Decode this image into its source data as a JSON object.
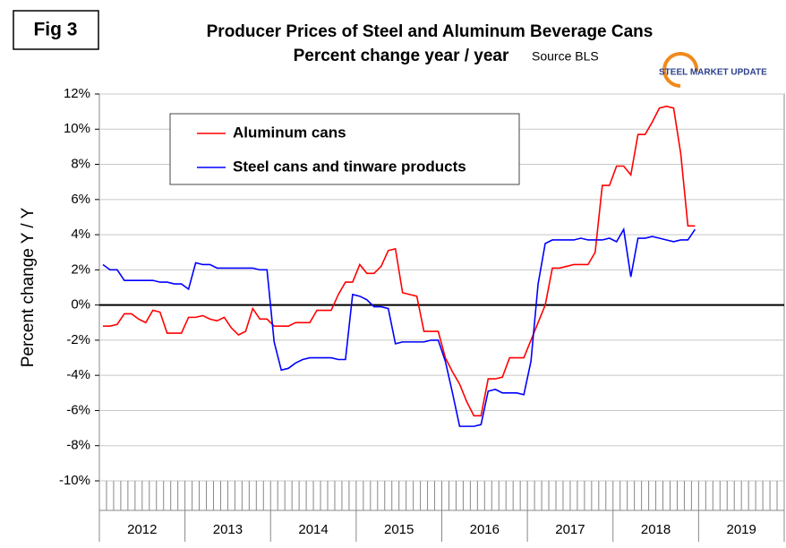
{
  "chart_data": {
    "type": "line",
    "figure_label": "Fig 3",
    "title": "Producer Prices of Steel and Aluminum Beverage Cans",
    "subtitle": "Percent change year / year",
    "source": "Source BLS",
    "logo": "STEEL MARKET UPDATE",
    "y_label": "Percent change Y / Y",
    "categories": [
      null,
      null,
      null,
      null,
      null,
      null,
      null,
      null,
      null,
      null,
      null,
      null,
      null,
      null,
      null,
      null,
      null,
      null,
      null,
      null,
      null,
      null,
      null,
      null,
      null,
      null,
      null,
      null,
      null,
      null,
      null,
      null,
      null,
      null,
      null,
      null,
      null,
      null,
      null,
      null,
      null,
      null,
      null,
      null,
      null,
      null,
      null,
      null,
      null,
      null,
      null,
      null,
      null,
      null,
      null,
      null,
      null,
      null,
      null,
      null,
      null,
      null,
      null,
      null,
      null,
      null,
      null,
      null,
      null,
      null,
      null,
      null,
      null,
      null,
      null,
      null,
      null,
      null,
      null,
      null,
      null,
      null,
      null,
      null,
      null,
      null,
      null,
      null,
      null,
      null,
      null,
      null,
      null,
      null,
      null,
      null
    ],
    "year_labels": [
      "2012",
      "2013",
      "2014",
      "2015",
      "2016",
      "2017",
      "2018",
      "2019"
    ],
    "series": [
      {
        "name": "Aluminum cans",
        "color": "#ff0000",
        "values": [
          -1.2,
          -1.2,
          -1.1,
          -0.5,
          -0.5,
          -0.8,
          -1.0,
          -0.3,
          -0.4,
          -1.6,
          -1.6,
          -1.6,
          -0.7,
          -0.7,
          -0.6,
          -0.8,
          -0.9,
          -0.7,
          -1.3,
          -1.7,
          -1.5,
          -0.2,
          -0.8,
          -0.8,
          -1.2,
          -1.2,
          -1.2,
          -1.0,
          -1.0,
          -1.0,
          -0.3,
          -0.3,
          -0.3,
          0.6,
          1.3,
          1.3,
          2.3,
          1.8,
          1.8,
          2.2,
          3.1,
          3.2,
          0.7,
          0.6,
          0.5,
          -1.5,
          -1.5,
          -1.5,
          -3.0,
          -3.8,
          -4.5,
          -5.5,
          -6.3,
          -6.3,
          -4.2,
          -4.2,
          -4.1,
          -3.0,
          -3.0,
          -3.0,
          -2.0,
          -1.0,
          0.0,
          2.1,
          2.1,
          2.2,
          2.3,
          2.3,
          2.3,
          3.0,
          6.8,
          6.8,
          7.9,
          7.9,
          7.4,
          9.7,
          9.7,
          10.4,
          11.2,
          11.3,
          11.2,
          8.6,
          4.5,
          4.5,
          null,
          null,
          null,
          null,
          null,
          null,
          null,
          null,
          null,
          null,
          null,
          null
        ]
      },
      {
        "name": "Steel cans and tinware products",
        "color": "#0000ff",
        "values": [
          2.3,
          2.0,
          2.0,
          1.4,
          1.4,
          1.4,
          1.4,
          1.4,
          1.3,
          1.3,
          1.2,
          1.2,
          0.9,
          2.4,
          2.3,
          2.3,
          2.1,
          2.1,
          2.1,
          2.1,
          2.1,
          2.1,
          2.0,
          2.0,
          -2.1,
          -3.7,
          -3.6,
          -3.3,
          -3.1,
          -3.0,
          -3.0,
          -3.0,
          -3.0,
          -3.1,
          -3.1,
          0.6,
          0.5,
          0.3,
          -0.1,
          -0.1,
          -0.2,
          -2.2,
          -2.1,
          -2.1,
          -2.1,
          -2.1,
          -2.0,
          -2.0,
          -3.2,
          -5.0,
          -6.9,
          -6.9,
          -6.9,
          -6.8,
          -4.9,
          -4.8,
          -5.0,
          -5.0,
          -5.0,
          -5.1,
          -3.2,
          1.2,
          3.5,
          3.7,
          3.7,
          3.7,
          3.7,
          3.8,
          3.7,
          3.7,
          3.7,
          3.8,
          3.6,
          4.3,
          1.6,
          3.8,
          3.8,
          3.9,
          3.8,
          3.7,
          3.6,
          3.7,
          3.7,
          4.3,
          null,
          null,
          null,
          null,
          null,
          null,
          null,
          null,
          null,
          null,
          null,
          null
        ]
      }
    ],
    "ylim": [
      -10,
      12
    ],
    "yticks": [
      {
        "value": -10,
        "label": "-10%"
      },
      {
        "value": -8,
        "label": "-8%"
      },
      {
        "value": -6,
        "label": "-6%"
      },
      {
        "value": -4,
        "label": "-4%"
      },
      {
        "value": -2,
        "label": "-2%"
      },
      {
        "value": 0,
        "label": "0%"
      },
      {
        "value": 2,
        "label": "2%"
      },
      {
        "value": 4,
        "label": "4%"
      },
      {
        "value": 6,
        "label": "6%"
      },
      {
        "value": 8,
        "label": "8%"
      },
      {
        "value": 10,
        "label": "10%"
      },
      {
        "value": 12,
        "label": "12%"
      }
    ],
    "grid": true,
    "legend": "upper left"
  }
}
